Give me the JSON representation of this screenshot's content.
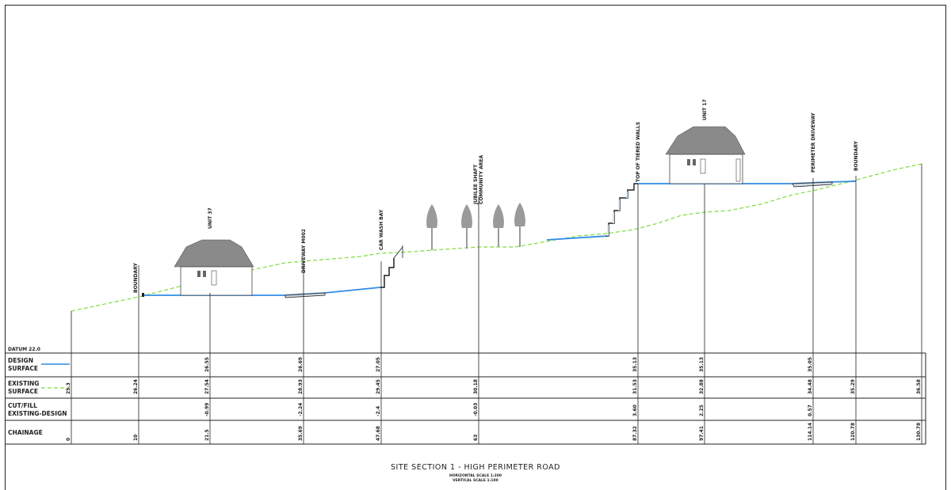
{
  "title": "SITE SECTION 1 - HIGH PERIMETER ROAD",
  "scale_h": "HORIZONTAL SCALE 1:200",
  "scale_v": "VERTICAL SCALE 1:100",
  "datum": "DATUM 22.0",
  "row_labels": {
    "design_1": "DESIGN",
    "design_2": "SURFACE",
    "existing_1": "EXISTING",
    "existing_2": "SURFACE",
    "cutfill_1": "CUT/FILL",
    "cutfill_2": "EXISTING-DESIGN",
    "chainage": "CHAINAGE"
  },
  "colors": {
    "design": "#2f8be6",
    "existing": "#7fdc3a",
    "line": "#222222",
    "house_roof": "#8a8a8a",
    "tree": "#9a9a9a"
  },
  "annotations": [
    {
      "id": "boundary-left",
      "text": "BOUNDARY"
    },
    {
      "id": "unit-37",
      "text": "UNIT 37"
    },
    {
      "id": "driveway",
      "text": "DRIVEWAY M002"
    },
    {
      "id": "car-wash",
      "text": "CAR WASH BAY"
    },
    {
      "id": "jubilee-1",
      "text": "JUBILEE SHAFT"
    },
    {
      "id": "jubilee-2",
      "text": "COMMUNITY AREA"
    },
    {
      "id": "tiered",
      "text": "TOP OF TIERED WALLS"
    },
    {
      "id": "unit-17",
      "text": "UNIT 17"
    },
    {
      "id": "perimeter",
      "text": "PERIMETER DRIVEWAY"
    },
    {
      "id": "boundary-right",
      "text": "BOUNDARY"
    }
  ],
  "stations": [
    {
      "chainage": "0",
      "existing": "25.3",
      "design": "",
      "cutfill": ""
    },
    {
      "chainage": "10",
      "existing": "26.24",
      "design": "",
      "cutfill": ""
    },
    {
      "chainage": "21.5",
      "existing": "27.54",
      "design": "26.55",
      "cutfill": "-0.99"
    },
    {
      "chainage": "35.69",
      "existing": "28.93",
      "design": "26.69",
      "cutfill": "-2.24"
    },
    {
      "chainage": "47.68",
      "existing": "29.45",
      "design": "27.05",
      "cutfill": "-2.4"
    },
    {
      "chainage": "63",
      "existing": "30.18",
      "design": "",
      "cutfill": "-0.03"
    },
    {
      "chainage": "87.32",
      "existing": "31.53",
      "design": "35.13",
      "cutfill": "3.60"
    },
    {
      "chainage": "97.41",
      "existing": "32.88",
      "design": "35.13",
      "cutfill": "2.25"
    },
    {
      "chainage": "114.14",
      "existing": "34.48",
      "design": "35.05",
      "cutfill": "0.57"
    },
    {
      "chainage": "120.78",
      "existing": "35.29",
      "design": "",
      "cutfill": ""
    },
    {
      "chainage": "130.78",
      "existing": "36.58",
      "design": "",
      "cutfill": ""
    }
  ]
}
